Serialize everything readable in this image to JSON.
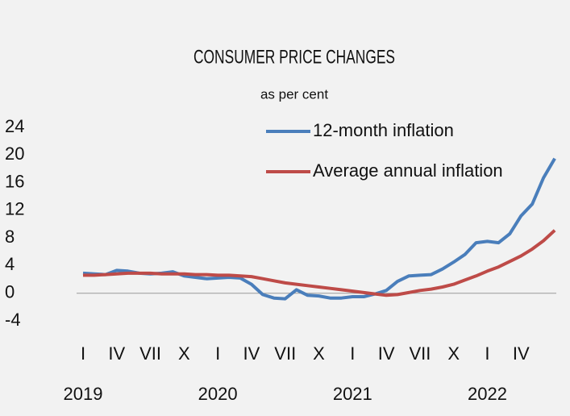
{
  "chart_data": {
    "type": "line",
    "title": "CONSUMER PRICE CHANGES",
    "subtitle": "as per cent",
    "categories": [
      "I",
      null,
      null,
      "IV",
      null,
      null,
      "VII",
      null,
      null,
      "X",
      null,
      null,
      "I",
      null,
      null,
      "IV",
      null,
      null,
      "VII",
      null,
      null,
      "X",
      null,
      null,
      "I",
      null,
      null,
      "IV",
      null,
      null,
      "VII",
      null,
      null,
      "X",
      null,
      null,
      "I",
      null,
      null,
      "IV",
      null,
      null,
      null
    ],
    "years": [
      "2019",
      "2020",
      "2021",
      "2022"
    ],
    "series": [
      {
        "name": "12-month inflation",
        "color": "#4a7ebb",
        "values": [
          2.9,
          2.8,
          2.7,
          3.3,
          3.2,
          2.9,
          2.8,
          2.9,
          3.1,
          2.5,
          2.3,
          2.1,
          2.2,
          2.3,
          2.2,
          1.3,
          -0.2,
          -0.7,
          -0.8,
          0.5,
          -0.3,
          -0.4,
          -0.7,
          -0.7,
          -0.5,
          -0.5,
          -0.1,
          0.4,
          1.7,
          2.5,
          2.6,
          2.7,
          3.5,
          4.5,
          5.6,
          7.3,
          7.5,
          7.3,
          8.6,
          11.2,
          12.9,
          16.7,
          19.5
        ]
      },
      {
        "name": "Average annual inflation",
        "color": "#be4b48",
        "values": [
          2.6,
          2.6,
          2.7,
          2.8,
          2.9,
          2.9,
          2.9,
          2.8,
          2.8,
          2.8,
          2.7,
          2.7,
          2.6,
          2.6,
          2.5,
          2.4,
          2.1,
          1.8,
          1.5,
          1.3,
          1.1,
          0.9,
          0.7,
          0.5,
          0.3,
          0.1,
          -0.1,
          -0.3,
          -0.2,
          0.1,
          0.4,
          0.6,
          0.9,
          1.3,
          1.9,
          2.5,
          3.2,
          3.8,
          4.6,
          5.4,
          6.4,
          7.6,
          9.1
        ]
      }
    ],
    "ylim": [
      -4,
      24
    ],
    "yticks": [
      -4,
      0,
      4,
      8,
      12,
      16,
      20,
      24
    ],
    "grid": false,
    "legend": "top"
  }
}
